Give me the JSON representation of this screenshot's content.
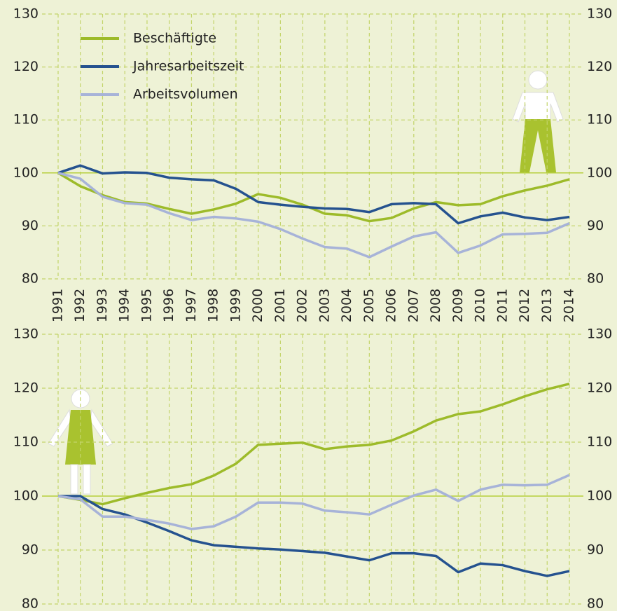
{
  "chart_data": [
    {
      "type": "line",
      "categories": [
        "1991",
        "1992",
        "1993",
        "1994",
        "1995",
        "1996",
        "1997",
        "1998",
        "1999",
        "2000",
        "2001",
        "2002",
        "2003",
        "2004",
        "2005",
        "2006",
        "2007",
        "2008",
        "2009",
        "2010",
        "2011",
        "2012",
        "2013",
        "2014"
      ],
      "ylim": [
        80,
        130
      ],
      "yticks": [
        80,
        90,
        100,
        110,
        120,
        130
      ],
      "grid": true,
      "legend": "top-left",
      "series": [
        {
          "name": "Beschäftigte",
          "color": "#9dbb2a",
          "values": [
            100,
            97.5,
            95.8,
            94.5,
            94.2,
            93.2,
            92.3,
            93.1,
            94.2,
            96.0,
            95.3,
            94.0,
            92.3,
            92.0,
            90.9,
            91.5,
            93.3,
            94.5,
            93.9,
            94.1,
            95.6,
            96.7,
            97.6,
            98.8
          ]
        },
        {
          "name": "Jahresarbeitszeit",
          "color": "#25528f",
          "values": [
            100,
            101.4,
            99.9,
            100.1,
            100.0,
            99.1,
            98.8,
            98.6,
            97.0,
            94.5,
            94.0,
            93.6,
            93.3,
            93.2,
            92.6,
            94.1,
            94.3,
            94.1,
            90.5,
            91.8,
            92.5,
            91.6,
            91.1,
            91.7
          ]
        },
        {
          "name": "Arbeitsvolumen",
          "color": "#a7b3d8",
          "values": [
            100,
            98.9,
            95.5,
            94.3,
            94.0,
            92.4,
            91.1,
            91.7,
            91.4,
            90.8,
            89.4,
            87.6,
            86.0,
            85.7,
            84.1,
            86.1,
            88.0,
            88.8,
            84.9,
            86.3,
            88.4,
            88.5,
            88.7,
            90.5
          ]
        }
      ]
    },
    {
      "type": "line",
      "ylim": [
        80,
        130
      ],
      "yticks": [
        80,
        90,
        100,
        110,
        120,
        130
      ],
      "grid": true,
      "series": [
        {
          "color": "#9dbb2a",
          "values": [
            100,
            99.3,
            98.5,
            99.6,
            100.6,
            101.5,
            102.2,
            103.8,
            106.0,
            109.5,
            109.7,
            109.9,
            108.7,
            109.2,
            109.5,
            110.3,
            112.0,
            114.0,
            115.2,
            115.7,
            117.0,
            118.5,
            119.8,
            120.8
          ]
        },
        {
          "color": "#25528f",
          "values": [
            100,
            100.0,
            97.6,
            96.6,
            95.1,
            93.5,
            91.8,
            90.9,
            90.6,
            90.3,
            90.1,
            89.8,
            89.5,
            88.8,
            88.1,
            89.4,
            89.4,
            88.9,
            85.9,
            87.5,
            87.2,
            86.1,
            85.2,
            86.1
          ]
        },
        {
          "color": "#a7b3d8",
          "values": [
            100,
            99.4,
            96.2,
            96.2,
            95.6,
            94.9,
            93.9,
            94.4,
            96.2,
            98.8,
            98.8,
            98.6,
            97.3,
            97.0,
            96.6,
            98.4,
            100.1,
            101.2,
            99.1,
            101.2,
            102.1,
            102.0,
            102.1,
            103.9
          ]
        }
      ]
    }
  ]
}
